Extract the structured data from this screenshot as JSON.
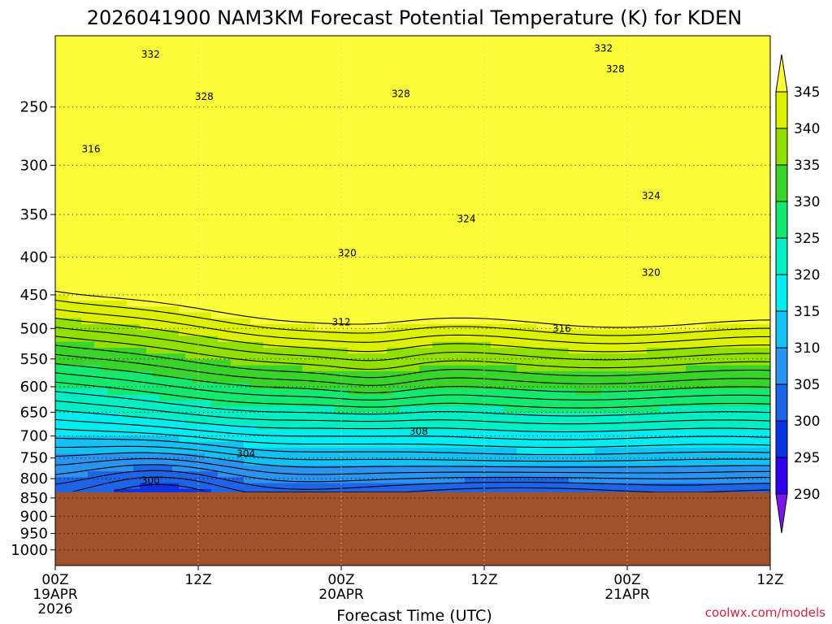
{
  "chart_data": {
    "type": "heatmap",
    "title": "2026041900 NAM3KM Forecast Potential Temperature (K) for KDEN",
    "xlabel": "Forecast Time (UTC)",
    "credit": "coolwx.com/models",
    "x_ticks": [
      {
        "hours": 0,
        "label": "00Z",
        "sub1": "19APR",
        "sub2": "2026"
      },
      {
        "hours": 12,
        "label": "12Z",
        "sub1": "",
        "sub2": ""
      },
      {
        "hours": 24,
        "label": "00Z",
        "sub1": "20APR",
        "sub2": ""
      },
      {
        "hours": 36,
        "label": "12Z",
        "sub1": "",
        "sub2": ""
      },
      {
        "hours": 48,
        "label": "00Z",
        "sub1": "21APR",
        "sub2": ""
      },
      {
        "hours": 60,
        "label": "12Z",
        "sub1": "",
        "sub2": ""
      }
    ],
    "xlim": [
      0,
      60
    ],
    "y_ticks": [
      {
        "value": 250,
        "label": "250"
      },
      {
        "value": 300,
        "label": "300"
      },
      {
        "value": 350,
        "label": "350"
      },
      {
        "value": 400,
        "label": "400"
      },
      {
        "value": 450,
        "label": "450"
      },
      {
        "value": 500,
        "label": "500"
      },
      {
        "value": 550,
        "label": "550"
      },
      {
        "value": 600,
        "label": "600"
      },
      {
        "value": 650,
        "label": "650"
      },
      {
        "value": 700,
        "label": "700"
      },
      {
        "value": 750,
        "label": "750"
      },
      {
        "value": 800,
        "label": "800"
      },
      {
        "value": 850,
        "label": "850"
      },
      {
        "value": 900,
        "label": "900"
      },
      {
        "value": 950,
        "label": "950"
      },
      {
        "value": 1000,
        "label": "1000"
      }
    ],
    "ylim": [
      200,
      1050
    ],
    "y_scale": "log-pressure",
    "ground_pressure": 835,
    "colorbar": {
      "levels": [
        {
          "value": 290,
          "label": "290"
        },
        {
          "value": 295,
          "label": "295"
        },
        {
          "value": 300,
          "label": "300"
        },
        {
          "value": 305,
          "label": "305"
        },
        {
          "value": 310,
          "label": "310"
        },
        {
          "value": 315,
          "label": "315"
        },
        {
          "value": 320,
          "label": "320"
        },
        {
          "value": 325,
          "label": "325"
        },
        {
          "value": 330,
          "label": "330"
        },
        {
          "value": 335,
          "label": "335"
        },
        {
          "value": 340,
          "label": "340"
        },
        {
          "value": 345,
          "label": "345"
        }
      ],
      "colors": [
        "#7a17f0",
        "#3000ee",
        "#0a33e6",
        "#1e64e6",
        "#2b94f0",
        "#13c1f2",
        "#00ecf0",
        "#00eec4",
        "#14e86e",
        "#39d42a",
        "#92e000",
        "#dcf000",
        "#fcfc38"
      ]
    },
    "ground_color": "#a0522d",
    "contour_labels": [
      {
        "text": "332",
        "hours": 8.0,
        "pressure": 212
      },
      {
        "text": "332",
        "hours": 46.0,
        "pressure": 208
      },
      {
        "text": "328",
        "hours": 12.5,
        "pressure": 242
      },
      {
        "text": "328",
        "hours": 29.0,
        "pressure": 240
      },
      {
        "text": "328",
        "hours": 47.0,
        "pressure": 222
      },
      {
        "text": "324",
        "hours": 34.5,
        "pressure": 355
      },
      {
        "text": "324",
        "hours": 50.0,
        "pressure": 330
      },
      {
        "text": "320",
        "hours": 24.5,
        "pressure": 395
      },
      {
        "text": "320",
        "hours": 50.0,
        "pressure": 420
      },
      {
        "text": "316",
        "hours": 3.0,
        "pressure": 285
      },
      {
        "text": "316",
        "hours": 42.5,
        "pressure": 500
      },
      {
        "text": "312",
        "hours": 24.0,
        "pressure": 490
      },
      {
        "text": "308",
        "hours": 30.5,
        "pressure": 690
      },
      {
        "text": "304",
        "hours": 16.0,
        "pressure": 740
      },
      {
        "text": "300",
        "hours": 8.0,
        "pressure": 805
      }
    ]
  }
}
